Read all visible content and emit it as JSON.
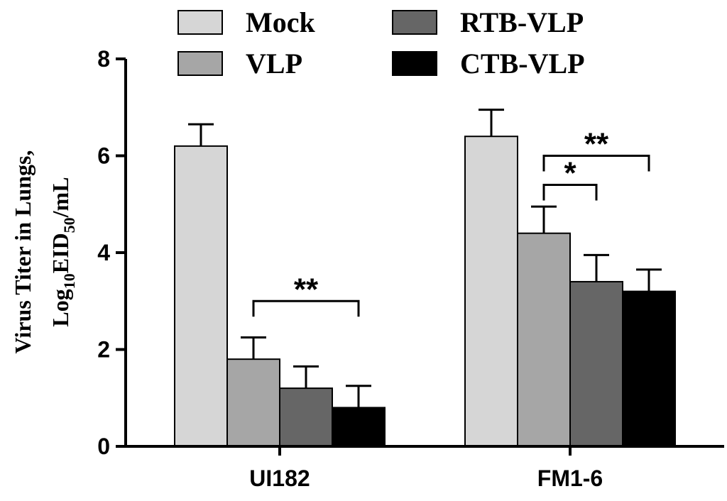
{
  "chart_data": {
    "type": "bar",
    "ylabel_line1": "Virus Titer in Lungs,",
    "ylabel_line2": {
      "prefix": "Log",
      "sub1": "10",
      "middle": "EID",
      "sub2": "50",
      "suffix": "/mL"
    },
    "categories": [
      "UI182",
      "FM1-6"
    ],
    "series": [
      {
        "name": "Mock",
        "color": "#d6d6d6",
        "values": [
          6.2,
          6.4
        ],
        "errors": [
          0.45,
          0.55
        ]
      },
      {
        "name": "VLP",
        "color": "#a6a6a6",
        "values": [
          1.8,
          4.4
        ],
        "errors": [
          0.45,
          0.55
        ]
      },
      {
        "name": "RTB-VLP",
        "color": "#666666",
        "values": [
          1.2,
          3.4
        ],
        "errors": [
          0.45,
          0.55
        ]
      },
      {
        "name": "CTB-VLP",
        "color": "#000000",
        "values": [
          0.8,
          3.2
        ],
        "errors": [
          0.45,
          0.45
        ]
      }
    ],
    "ylim": [
      0,
      8
    ],
    "yticks": [
      0,
      2,
      4,
      6,
      8
    ],
    "legend_position": "top",
    "grid": false,
    "significance": [
      {
        "category": 0,
        "from_series": 1,
        "to_series": 3,
        "label": "**",
        "level": 3.0
      },
      {
        "category": 1,
        "from_series": 1,
        "to_series": 2,
        "label": "*",
        "level": 5.4
      },
      {
        "category": 1,
        "from_series": 1,
        "to_series": 3,
        "label": "**",
        "level": 6.0
      }
    ]
  }
}
